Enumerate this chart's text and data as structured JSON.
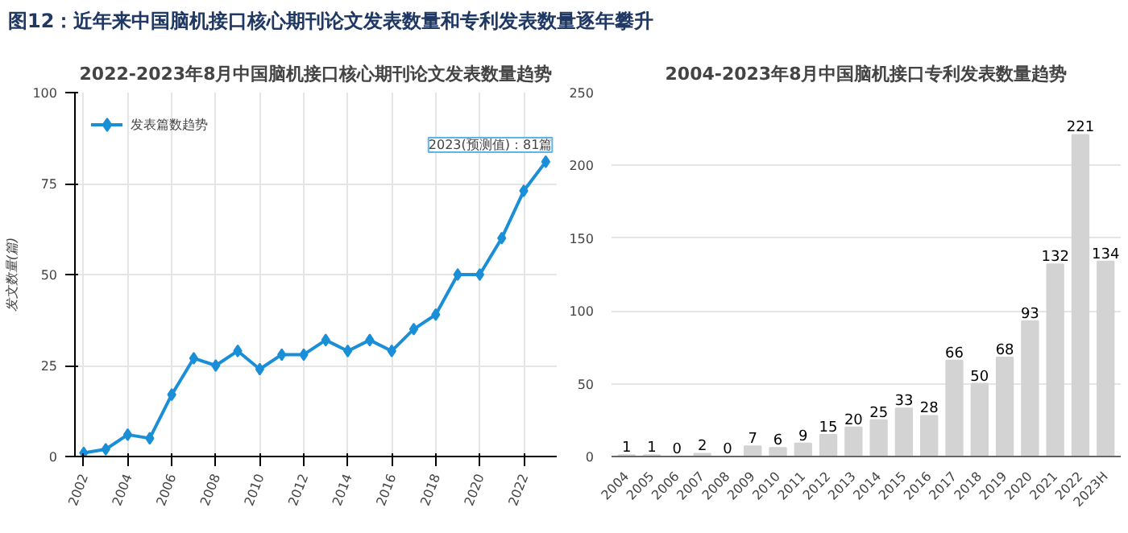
{
  "chart_data": [
    {
      "type": "line",
      "title": "2022-2023年8月中国脑机接口核心期刊论文发表数量趋势",
      "ylabel": "发文数量(篇)",
      "annotations": [
        "图12：近年来中国脑机接口核心期刊论文发表数量和专利发表数量逐年攀升",
        {
          "text": "2023(预测值)：81篇",
          "x": 2023,
          "y": 81
        }
      ],
      "x": [
        2002,
        2003,
        2004,
        2005,
        2006,
        2007,
        2008,
        2009,
        2010,
        2011,
        2012,
        2013,
        2014,
        2015,
        2016,
        2017,
        2018,
        2019,
        2020,
        2021,
        2022,
        2023
      ],
      "series": [
        {
          "name": "发表篇数趋势",
          "color": "#1a8fd8",
          "values": [
            1,
            2,
            6,
            5,
            17,
            27,
            25,
            29,
            24,
            28,
            28,
            32,
            29,
            32,
            29,
            35,
            39,
            50,
            50,
            60,
            73,
            81
          ]
        }
      ],
      "xlim": [
        2001.6,
        2023.5
      ],
      "xticks": [
        2002,
        2004,
        2006,
        2008,
        2010,
        2012,
        2014,
        2016,
        2018,
        2020,
        2022
      ],
      "ylim": [
        0,
        100
      ],
      "yticks": [
        0,
        25,
        50,
        75,
        100
      ],
      "grid": true,
      "legend": "top left",
      "marker": "diamond"
    },
    {
      "type": "bar",
      "title": "2004-2023年8月中国脑机接口专利发表数量趋势",
      "categories": [
        "2004",
        "2005",
        "2006",
        "2007",
        "2008",
        "2009",
        "2010",
        "2011",
        "2012",
        "2013",
        "2014",
        "2015",
        "2016",
        "2017",
        "2018",
        "2019",
        "2020",
        "2021",
        "2022",
        "2023H"
      ],
      "values": [
        1,
        1,
        0,
        2,
        0,
        7,
        6,
        9,
        15,
        20,
        25,
        33,
        28,
        66,
        50,
        68,
        93,
        132,
        221,
        134
      ],
      "color": "#d3d3d3",
      "ylim": [
        0,
        250
      ],
      "yticks": [
        0,
        50,
        100,
        150,
        200,
        250
      ],
      "grid": "y",
      "data_labels": true
    }
  ]
}
